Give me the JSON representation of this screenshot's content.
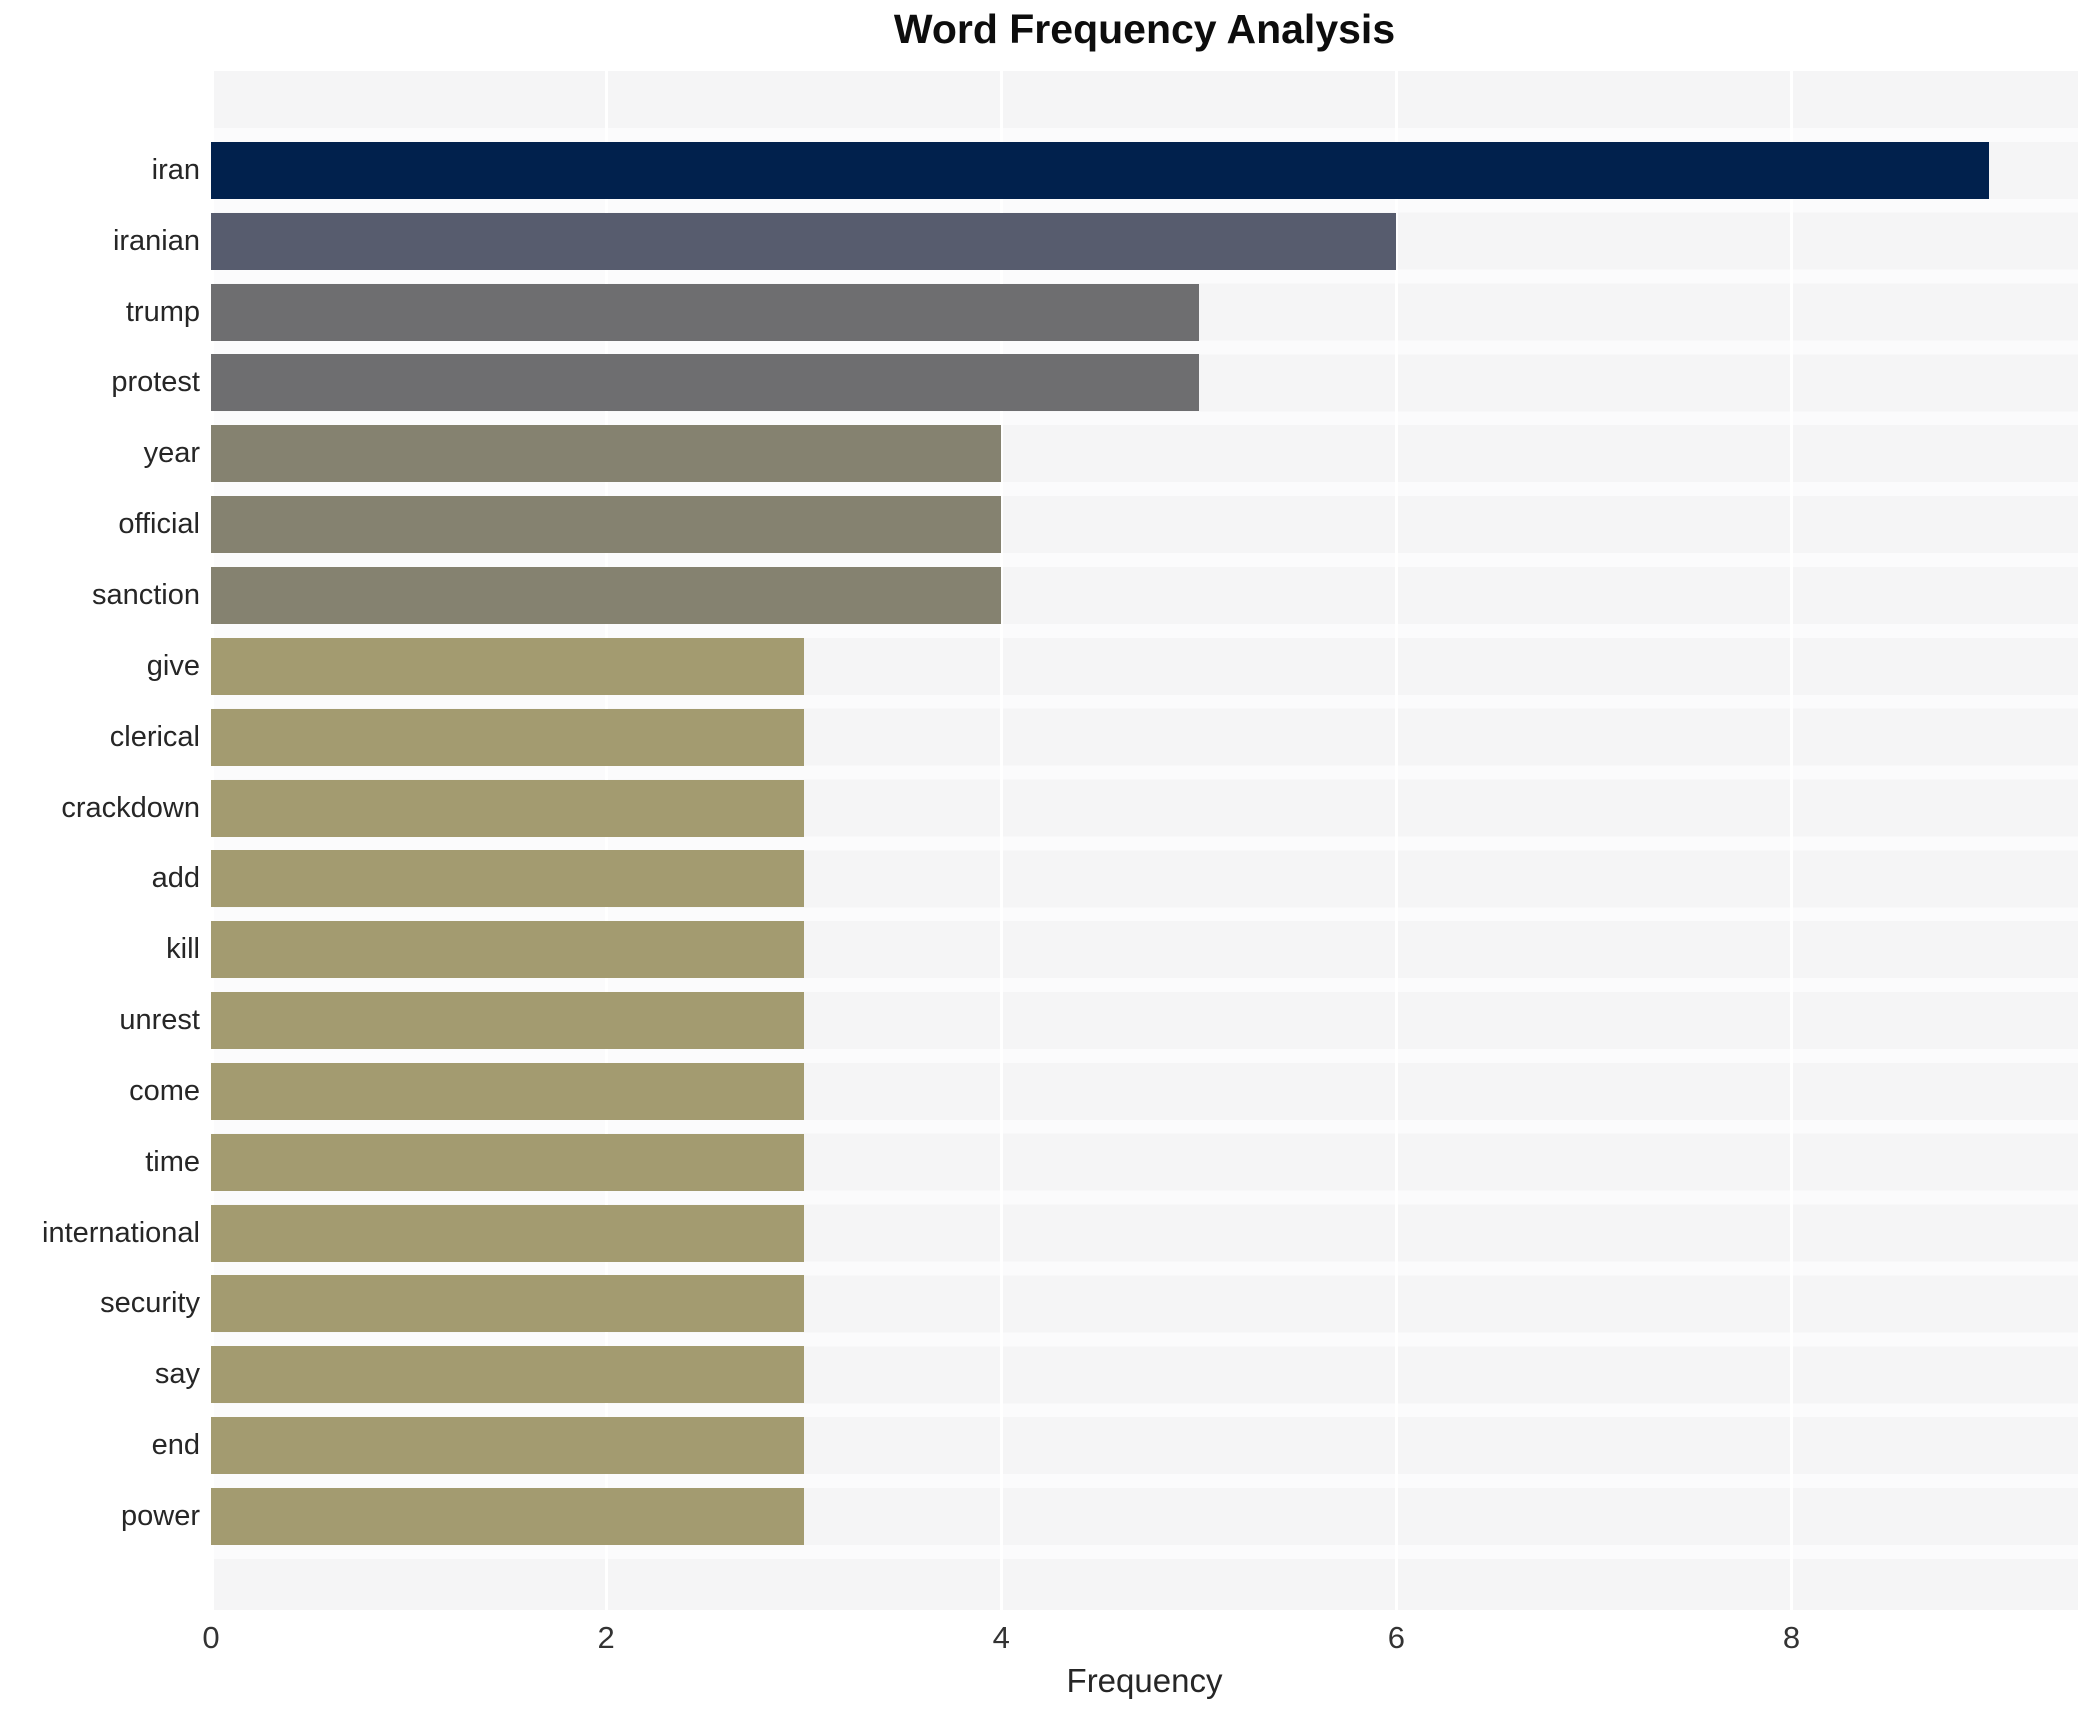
{
  "title": "Word Frequency Analysis",
  "chart_data": {
    "type": "bar",
    "orientation": "horizontal",
    "title": "Word Frequency Analysis",
    "xlabel": "Frequency",
    "ylabel": "",
    "xlim": [
      0,
      9.45
    ],
    "x_ticks": [
      0,
      2,
      4,
      6,
      8
    ],
    "grid": true,
    "legend": false,
    "categories": [
      "iran",
      "iranian",
      "trump",
      "protest",
      "year",
      "official",
      "sanction",
      "give",
      "clerical",
      "crackdown",
      "add",
      "kill",
      "unrest",
      "come",
      "time",
      "international",
      "security",
      "say",
      "end",
      "power"
    ],
    "values": [
      9,
      6,
      5,
      5,
      4,
      4,
      4,
      3,
      3,
      3,
      3,
      3,
      3,
      3,
      3,
      3,
      3,
      3,
      3,
      3
    ],
    "bar_colors": [
      "#01214d",
      "#575c6e",
      "#6e6e70",
      "#6e6e70",
      "#858270",
      "#858270",
      "#858270",
      "#a39b70",
      "#a39b70",
      "#a39b70",
      "#a39b70",
      "#a39b70",
      "#a39b70",
      "#a39b70",
      "#a39b70",
      "#a39b70",
      "#a39b70",
      "#a39b70",
      "#a39b70",
      "#a39b70"
    ],
    "colors": {
      "figure_bg": "#ffffff",
      "plot_band": "#f5f5f6",
      "row_gap": "#fbfbfc",
      "gridline": "#ffffff",
      "title_text": "#0d0d0d",
      "label_text": "#262626",
      "tick_text": "#333333"
    }
  }
}
